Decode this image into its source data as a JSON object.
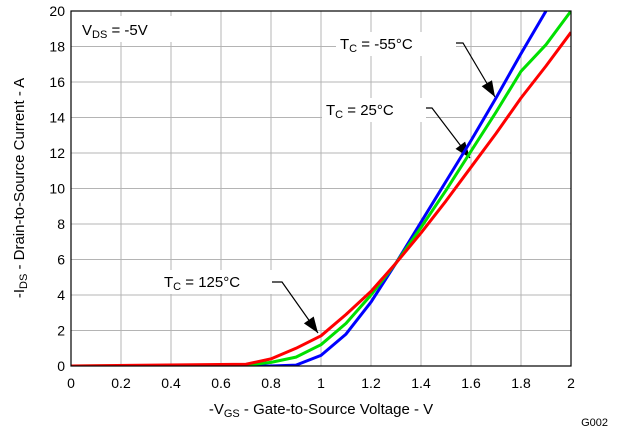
{
  "chart_data": {
    "type": "line",
    "xlabel": {
      "pre": "-V",
      "sub": "GS",
      "post": " - Gate-to-Source Voltage - V"
    },
    "ylabel": {
      "pre": "-I",
      "sub": "DS",
      "post": " - Drain-to-Source Current - A"
    },
    "xlim": [
      0,
      2
    ],
    "ylim": [
      0,
      20
    ],
    "xticks": [
      0,
      0.2,
      0.4,
      0.6,
      0.8,
      1,
      1.2,
      1.4,
      1.6,
      1.8,
      2
    ],
    "yticks": [
      0,
      2,
      4,
      6,
      8,
      10,
      12,
      14,
      16,
      18,
      20
    ],
    "grid": true,
    "figure_id": "G002",
    "annotations": [
      {
        "pre": "V",
        "sub": "DS",
        "post": " = -5V"
      },
      {
        "pre": "T",
        "sub": "C",
        "post": " = -55°C"
      },
      {
        "pre": "T",
        "sub": "C",
        "post": " = 25°C"
      },
      {
        "pre": "T",
        "sub": "C",
        "post": " = 125°C"
      }
    ],
    "series": [
      {
        "color": "#0000ff",
        "x": [
          0,
          0.8,
          0.9,
          1.0,
          1.1,
          1.2,
          1.3,
          1.4,
          1.5,
          1.6,
          1.7,
          1.8,
          1.9
        ],
        "y": [
          0,
          0,
          0.05,
          0.6,
          1.8,
          3.6,
          5.8,
          8.1,
          10.4,
          12.7,
          15.1,
          17.6,
          20
        ]
      },
      {
        "color": "#00e000",
        "x": [
          0,
          0.7,
          0.8,
          0.9,
          1.0,
          1.1,
          1.2,
          1.3,
          1.4,
          1.5,
          1.6,
          1.7,
          1.8,
          1.9,
          2.0
        ],
        "y": [
          0,
          0.05,
          0.2,
          0.5,
          1.2,
          2.4,
          4.0,
          5.8,
          7.8,
          9.9,
          12.1,
          14.3,
          16.6,
          18.1,
          20
        ]
      },
      {
        "color": "#ff0000",
        "x": [
          0,
          0.7,
          0.8,
          0.9,
          1.0,
          1.1,
          1.2,
          1.3,
          1.4,
          1.5,
          1.6,
          1.7,
          1.8,
          1.9,
          2.0
        ],
        "y": [
          0,
          0.1,
          0.4,
          1.0,
          1.7,
          2.9,
          4.2,
          5.8,
          7.5,
          9.3,
          11.2,
          13.1,
          15.1,
          16.9,
          18.8
        ]
      }
    ]
  }
}
